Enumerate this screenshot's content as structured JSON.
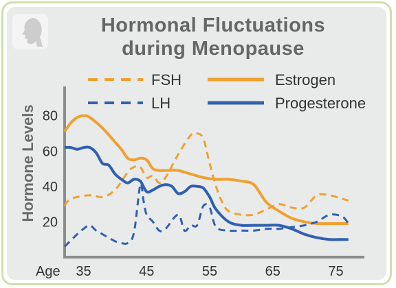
{
  "title_lines": [
    "Hormonal Fluctuations",
    "during Menopause"
  ],
  "chart_data": {
    "type": "line",
    "title": "Hormonal Fluctuations during Menopause",
    "ylabel": "Hormone Levels",
    "xlabel_prefix": "Age",
    "xlim": [
      32,
      78
    ],
    "ylim": [
      0,
      95
    ],
    "x_ticks": [
      35,
      45,
      55,
      65,
      75
    ],
    "y_ticks": [
      20,
      40,
      60,
      80
    ],
    "grid": false,
    "legend": "top",
    "series": [
      {
        "name": "FSH",
        "style": "dashed",
        "color": "#f0a030",
        "x": [
          32,
          33,
          36,
          38,
          40,
          42,
          43,
          44,
          45,
          46,
          47,
          48,
          50,
          52,
          53,
          54,
          55,
          56,
          57,
          58,
          60,
          62,
          64,
          66,
          68,
          70,
          72,
          74,
          76,
          77
        ],
        "y": [
          29,
          33,
          35,
          34,
          38,
          48,
          51,
          51,
          45,
          46,
          42,
          45,
          58,
          69,
          70,
          67,
          53,
          40,
          31,
          26,
          24,
          24,
          27,
          30,
          28,
          28,
          35,
          35,
          33,
          32
        ]
      },
      {
        "name": "Estrogen",
        "style": "solid",
        "color": "#f0a030",
        "x": [
          32,
          33,
          34,
          35,
          36,
          38,
          40,
          41,
          42,
          43,
          44,
          45,
          46,
          47,
          48,
          50,
          52,
          54,
          56,
          58,
          60,
          62,
          64,
          66,
          68,
          70,
          72,
          74,
          76,
          77
        ],
        "y": [
          71,
          76,
          79,
          80,
          79,
          73,
          65,
          61,
          56,
          55,
          56,
          55,
          50,
          49,
          49,
          49,
          47,
          45,
          44,
          44,
          43,
          41,
          31,
          26,
          22,
          20,
          19,
          19,
          19,
          19
        ]
      },
      {
        "name": "LH",
        "style": "dashed",
        "color": "#3060b0",
        "x": [
          32,
          34,
          35,
          36,
          37,
          38,
          40,
          41,
          42,
          43,
          44,
          44.5,
          45,
          46,
          47,
          48,
          50,
          51,
          52,
          53,
          54,
          55,
          56,
          58,
          60,
          62,
          64,
          66,
          68,
          70,
          72,
          74,
          76,
          77
        ],
        "y": [
          6,
          13,
          16,
          18,
          15,
          13,
          9,
          8,
          8,
          14,
          41,
          32,
          24,
          20,
          15,
          16,
          24,
          15,
          18,
          18,
          29,
          28,
          17,
          15,
          15,
          15,
          16,
          16,
          17,
          18,
          20,
          24,
          23,
          19
        ]
      },
      {
        "name": "Progesterone",
        "style": "solid",
        "color": "#3060b0",
        "x": [
          32,
          33,
          34,
          35,
          36,
          37,
          38,
          39,
          40,
          41,
          42,
          43,
          44,
          45,
          46,
          47,
          48,
          49,
          50,
          51,
          52,
          53,
          54,
          55,
          56,
          58,
          60,
          62,
          64,
          66,
          68,
          70,
          72,
          74,
          76,
          77
        ],
        "y": [
          62,
          62,
          61,
          62,
          62,
          59,
          53,
          52,
          47,
          44,
          42,
          44,
          43,
          37,
          38,
          40,
          41,
          40,
          36,
          37,
          40,
          40,
          39,
          34,
          27,
          20,
          18,
          18,
          18,
          18,
          16,
          13,
          11,
          10,
          10,
          10
        ]
      }
    ]
  },
  "legend": [
    {
      "label": "FSH",
      "style": "dashed",
      "color": "#f0a030"
    },
    {
      "label": "Estrogen",
      "style": "solid",
      "color": "#f0a030"
    },
    {
      "label": "LH",
      "style": "dashed",
      "color": "#3060b0"
    },
    {
      "label": "Progesterone",
      "style": "solid",
      "color": "#3060b0"
    }
  ],
  "colors": {
    "axis": "#8c8c8c",
    "logo_face": "#cdcdcd"
  }
}
